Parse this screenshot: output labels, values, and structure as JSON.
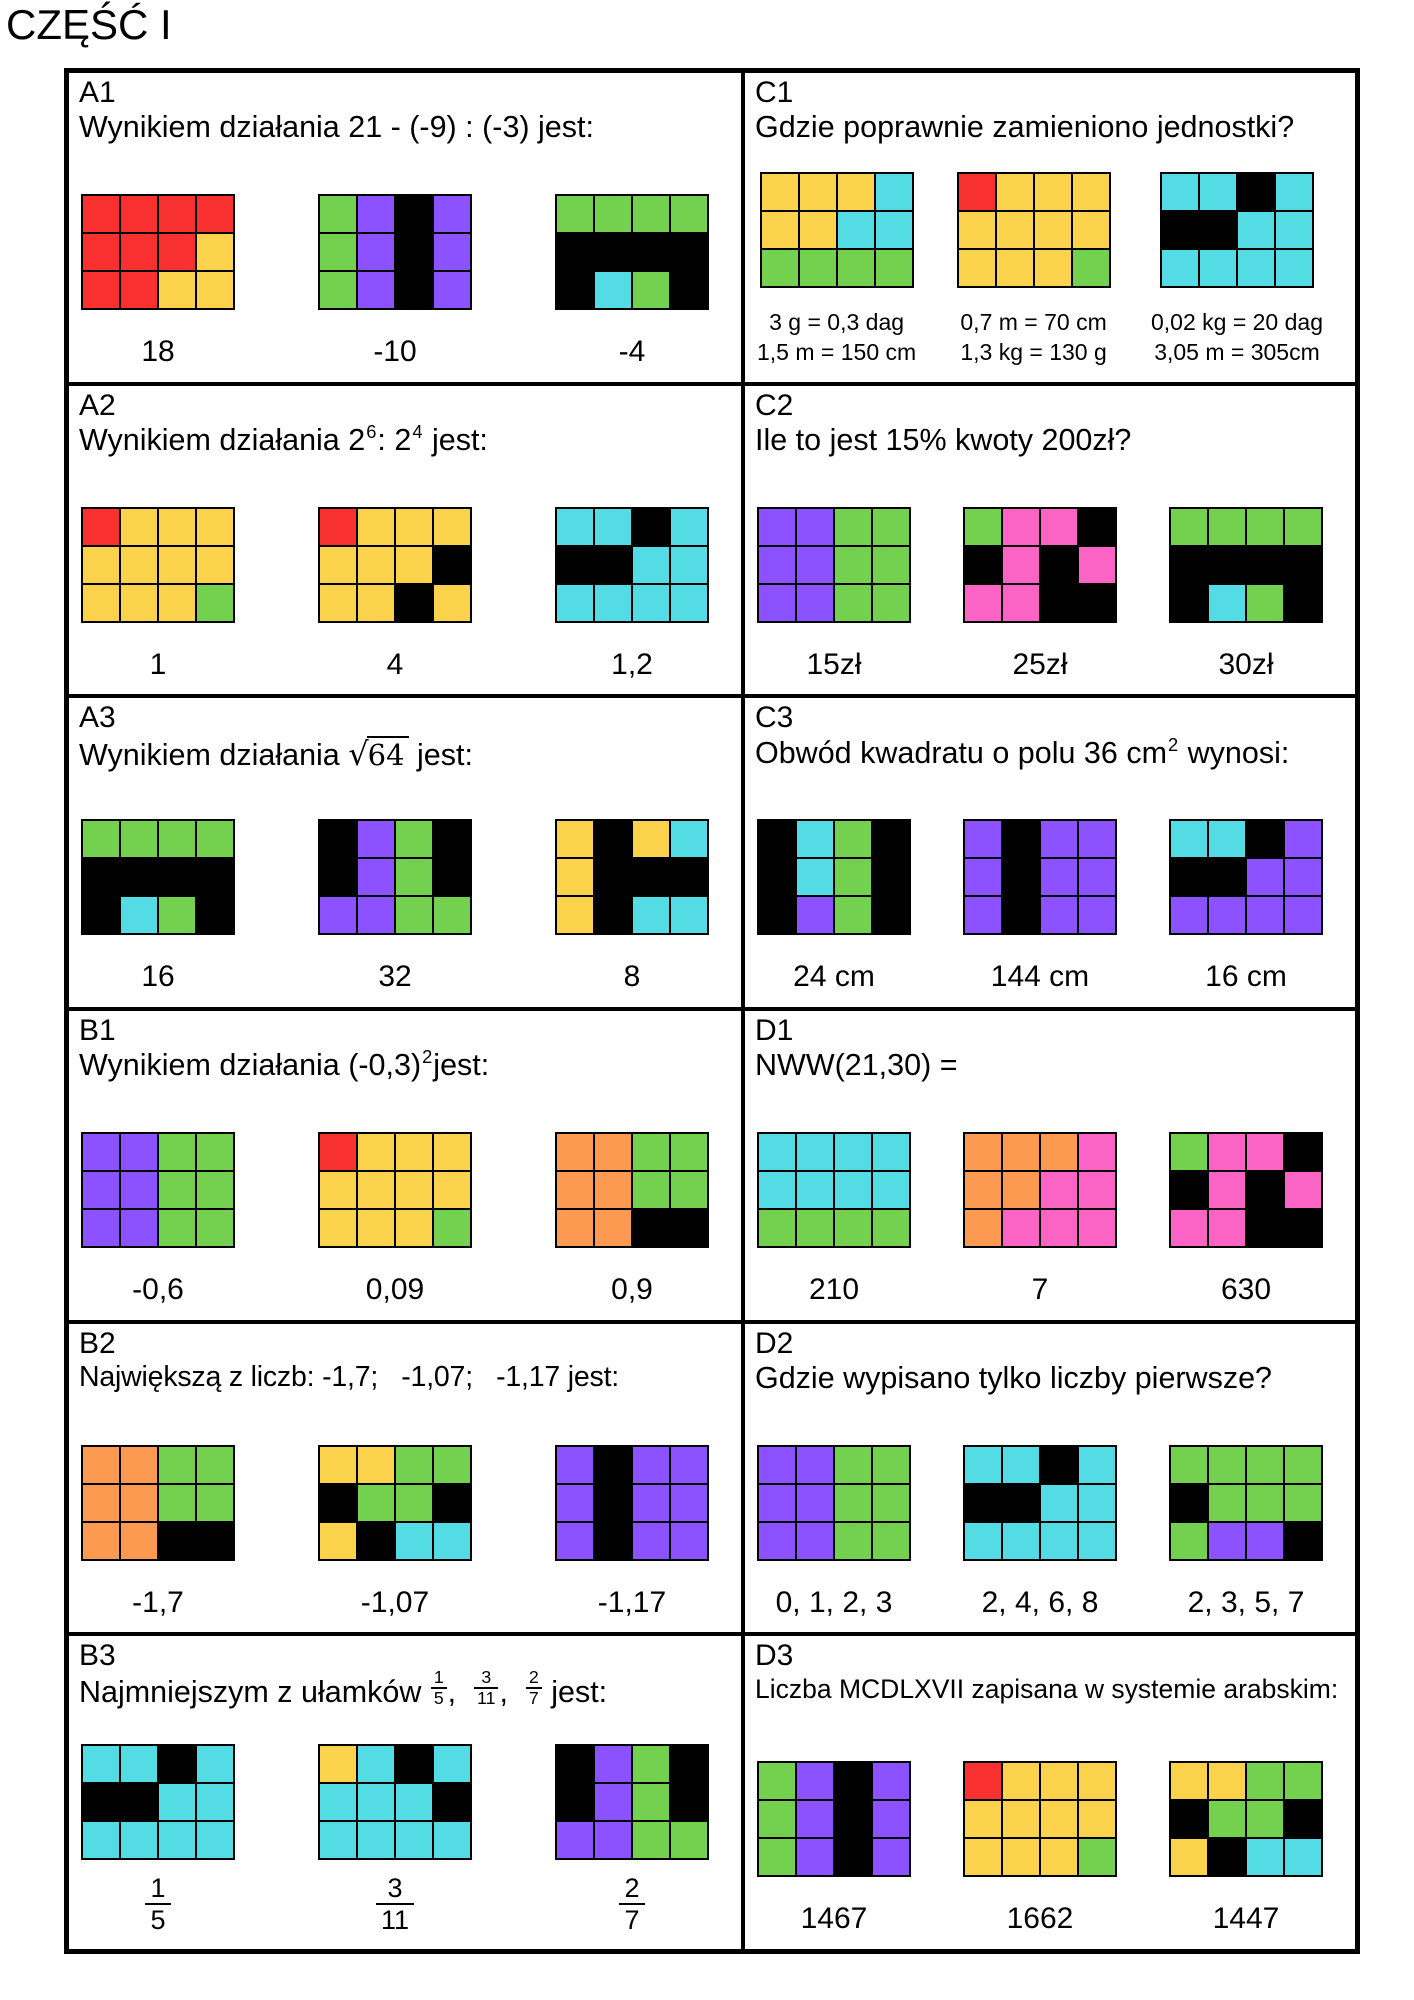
{
  "title": "CZĘŚĆ I",
  "palette": {
    "R": "#F93030",
    "Y": "#FBD24C",
    "G": "#74D14F",
    "C": "#53DCE4",
    "P": "#8C52FF",
    "K": "#FB64C4",
    "O": "#FB9A50",
    "B": "#000000"
  },
  "cells": [
    {
      "id": "A1",
      "question": [
        {
          "t": "text",
          "v": "Wynikiem działania 21 - (-9) : (-3) jest:"
        }
      ],
      "options": [
        {
          "grid": [
            "RRRR",
            "RRRY",
            "RRYY"
          ],
          "answer": {
            "t": "text",
            "v": "18"
          }
        },
        {
          "grid": [
            "GPBP",
            "GPBP",
            "GPBP"
          ],
          "answer": {
            "t": "text",
            "v": "-10"
          }
        },
        {
          "grid": [
            "GGGG",
            "BBBB",
            "BCGB"
          ],
          "answer": {
            "t": "text",
            "v": "-4"
          }
        }
      ]
    },
    {
      "id": "C1",
      "question": [
        {
          "t": "text",
          "v": "Gdzie poprawnie zamieniono jednostki?"
        }
      ],
      "options": [
        {
          "grid": [
            "YYYC",
            "YYCC",
            "GGGG"
          ],
          "answer": {
            "t": "lines",
            "lines": [
              "3 g = 0,3 dag",
              "1,5 m = 150 cm"
            ]
          }
        },
        {
          "grid": [
            "RYYY",
            "YYYY",
            "YYYG"
          ],
          "answer": {
            "t": "lines",
            "lines": [
              "0,7 m = 70 cm",
              "1,3 kg = 130 g"
            ]
          }
        },
        {
          "grid": [
            "CCBC",
            "BBCC",
            "CCCC"
          ],
          "answer": {
            "t": "lines",
            "lines": [
              "0,02 kg = 20 dag",
              "3,05 m = 305cm"
            ]
          }
        }
      ]
    },
    {
      "id": "A2",
      "question": [
        {
          "t": "text",
          "v": "Wynikiem działania 2"
        },
        {
          "t": "sup",
          "v": "6"
        },
        {
          "t": "text",
          "v": ": 2"
        },
        {
          "t": "sup",
          "v": "4"
        },
        {
          "t": "text",
          "v": " jest:"
        }
      ],
      "options": [
        {
          "grid": [
            "RYYY",
            "YYYY",
            "YYYG"
          ],
          "answer": {
            "t": "text",
            "v": "1"
          }
        },
        {
          "grid": [
            "RYYY",
            "YYYB",
            "YYBY"
          ],
          "answer": {
            "t": "text",
            "v": "4"
          }
        },
        {
          "grid": [
            "CCBC",
            "BBCC",
            "CCCC"
          ],
          "answer": {
            "t": "text",
            "v": "1,2"
          }
        }
      ]
    },
    {
      "id": "C2",
      "question": [
        {
          "t": "text",
          "v": "Ile to jest 15% kwoty 200zł?"
        }
      ],
      "options": [
        {
          "grid": [
            "PPGG",
            "PPGG",
            "PPGG"
          ],
          "answer": {
            "t": "text",
            "v": "15zł"
          }
        },
        {
          "grid": [
            "GKKB",
            "BKBK",
            "KKBB"
          ],
          "answer": {
            "t": "text",
            "v": "25zł"
          }
        },
        {
          "grid": [
            "GGGG",
            "BBBB",
            "BCGB"
          ],
          "answer": {
            "t": "text",
            "v": "30zł"
          }
        }
      ]
    },
    {
      "id": "A3",
      "question": [
        {
          "t": "text",
          "v": "Wynikiem działania "
        },
        {
          "t": "sqrt",
          "v": "64"
        },
        {
          "t": "text",
          "v": " jest:"
        }
      ],
      "options": [
        {
          "grid": [
            "GGGG",
            "BBBB",
            "BCGB"
          ],
          "answer": {
            "t": "text",
            "v": "16"
          }
        },
        {
          "grid": [
            "BPGB",
            "BPGB",
            "PPGG"
          ],
          "answer": {
            "t": "text",
            "v": "32"
          }
        },
        {
          "grid": [
            "YBYC",
            "YBBB",
            "YBCC"
          ],
          "answer": {
            "t": "text",
            "v": "8"
          }
        }
      ]
    },
    {
      "id": "C3",
      "question": [
        {
          "t": "text",
          "v": "Obwód kwadratu o polu 36 cm"
        },
        {
          "t": "sup",
          "v": "2"
        },
        {
          "t": "text",
          "v": " wynosi:"
        }
      ],
      "options": [
        {
          "grid": [
            "BCGB",
            "BCGB",
            "BPGB"
          ],
          "answer": {
            "t": "text",
            "v": "24 cm"
          }
        },
        {
          "grid": [
            "PBPP",
            "PBPP",
            "PBPP"
          ],
          "answer": {
            "t": "text",
            "v": "144 cm"
          }
        },
        {
          "grid": [
            "CCBP",
            "BBPP",
            "PPPP"
          ],
          "answer": {
            "t": "text",
            "v": "16 cm"
          }
        }
      ]
    },
    {
      "id": "B1",
      "question": [
        {
          "t": "text",
          "v": "Wynikiem działania (-0,3)"
        },
        {
          "t": "sup",
          "v": "2"
        },
        {
          "t": "text",
          "v": "jest:"
        }
      ],
      "options": [
        {
          "grid": [
            "PPGG",
            "PPGG",
            "PPGG"
          ],
          "answer": {
            "t": "text",
            "v": "-0,6"
          }
        },
        {
          "grid": [
            "RYYY",
            "YYYY",
            "YYYG"
          ],
          "answer": {
            "t": "text",
            "v": "0,09"
          }
        },
        {
          "grid": [
            "OOGG",
            "OOGG",
            "OOBB"
          ],
          "answer": {
            "t": "text",
            "v": "0,9"
          }
        }
      ]
    },
    {
      "id": "D1",
      "question": [
        {
          "t": "text",
          "v": "NWW(21,30) ="
        }
      ],
      "options": [
        {
          "grid": [
            "CCCC",
            "CCCC",
            "GGGG"
          ],
          "answer": {
            "t": "text",
            "v": "210"
          }
        },
        {
          "grid": [
            "OOOK",
            "OOKK",
            "OKKK"
          ],
          "answer": {
            "t": "text",
            "v": "7"
          }
        },
        {
          "grid": [
            "GKKB",
            "BKBK",
            "KKBB"
          ],
          "answer": {
            "t": "text",
            "v": "630"
          }
        }
      ]
    },
    {
      "id": "B2",
      "question": [
        {
          "t": "text",
          "v": "Największą z liczb: -1,7;   -1,07;   -1,17 jest:"
        }
      ],
      "options": [
        {
          "grid": [
            "OOGG",
            "OOGG",
            "OOBB"
          ],
          "answer": {
            "t": "text",
            "v": "-1,7"
          }
        },
        {
          "grid": [
            "YYGG",
            "BGGB",
            "YBCC"
          ],
          "answer": {
            "t": "text",
            "v": "-1,07"
          }
        },
        {
          "grid": [
            "PBPP",
            "PBPP",
            "PBPP"
          ],
          "answer": {
            "t": "text",
            "v": "-1,17"
          }
        }
      ]
    },
    {
      "id": "D2",
      "question": [
        {
          "t": "text",
          "v": "Gdzie wypisano tylko liczby pierwsze?"
        }
      ],
      "options": [
        {
          "grid": [
            "PPGG",
            "PPGG",
            "PPGG"
          ],
          "answer": {
            "t": "text",
            "v": "0, 1, 2, 3"
          }
        },
        {
          "grid": [
            "CCBC",
            "BBCC",
            "CCCC"
          ],
          "answer": {
            "t": "text",
            "v": "2, 4, 6, 8"
          }
        },
        {
          "grid": [
            "GGGG",
            "BGGG",
            "GPPB"
          ],
          "answer": {
            "t": "text",
            "v": "2, 3, 5, 7"
          }
        }
      ]
    },
    {
      "id": "B3",
      "question": [
        {
          "t": "text",
          "v": "Najmniejszym z ułamków "
        },
        {
          "t": "frac",
          "num": "1",
          "den": "5"
        },
        {
          "t": "text",
          "v": ",  "
        },
        {
          "t": "frac",
          "num": "3",
          "den": "11"
        },
        {
          "t": "text",
          "v": ",  "
        },
        {
          "t": "frac",
          "num": "2",
          "den": "7"
        },
        {
          "t": "text",
          "v": " jest:"
        }
      ],
      "options": [
        {
          "grid": [
            "CCBC",
            "BBCC",
            "CCCC"
          ],
          "answer": {
            "t": "frac",
            "num": "1",
            "den": "5"
          }
        },
        {
          "grid": [
            "YCBC",
            "CCCB",
            "CCCC"
          ],
          "answer": {
            "t": "frac",
            "num": "3",
            "den": "11"
          }
        },
        {
          "grid": [
            "BPGB",
            "BPGB",
            "PPGG"
          ],
          "answer": {
            "t": "frac",
            "num": "2",
            "den": "7"
          }
        }
      ]
    },
    {
      "id": "D3",
      "question": [
        {
          "t": "text",
          "v": "Liczba MCDLXVII zapisana w systemie arabskim:"
        }
      ],
      "options": [
        {
          "grid": [
            "GPBP",
            "GPBP",
            "GPBP"
          ],
          "answer": {
            "t": "text",
            "v": "1467"
          }
        },
        {
          "grid": [
            "RYYY",
            "YYYY",
            "YYYG"
          ],
          "answer": {
            "t": "text",
            "v": "1662"
          }
        },
        {
          "grid": [
            "YYGG",
            "BGGB",
            "YBCC"
          ],
          "answer": {
            "t": "text",
            "v": "1447"
          }
        }
      ]
    }
  ]
}
